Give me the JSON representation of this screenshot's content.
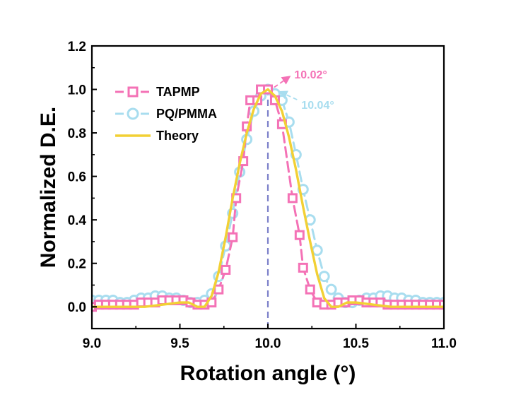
{
  "chart_data": {
    "type": "line",
    "xlabel": "Rotation angle (°)",
    "ylabel": "Normalized D.E.",
    "xlim": [
      9.0,
      11.0
    ],
    "ylim": [
      -0.1,
      1.2
    ],
    "xticks": [
      9.0,
      9.5,
      10.0,
      10.5,
      11.0
    ],
    "xtick_labels": [
      "9.0",
      "9.5",
      "10.0",
      "10.5",
      "11.0"
    ],
    "yticks": [
      0.0,
      0.2,
      0.4,
      0.6,
      0.8,
      1.0,
      1.2
    ],
    "ytick_labels": [
      "0.0",
      "0.2",
      "0.4",
      "0.6",
      "0.8",
      "1.0",
      "1.2"
    ],
    "grid": false,
    "legend_position": "top-left",
    "series": [
      {
        "name": "TAPMP",
        "color": "#f472b6",
        "marker": "square",
        "line_style": "dashed",
        "x": [
          9.0,
          9.04,
          9.08,
          9.12,
          9.16,
          9.2,
          9.24,
          9.28,
          9.32,
          9.36,
          9.4,
          9.44,
          9.48,
          9.52,
          9.56,
          9.6,
          9.64,
          9.68,
          9.72,
          9.76,
          9.8,
          9.82,
          9.86,
          9.88,
          9.9,
          9.94,
          9.96,
          10.0,
          10.04,
          10.08,
          10.14,
          10.18,
          10.2,
          10.24,
          10.28,
          10.32,
          10.36,
          10.4,
          10.44,
          10.48,
          10.52,
          10.56,
          10.6,
          10.64,
          10.68,
          10.72,
          10.76,
          10.8,
          10.84,
          10.88,
          10.92,
          10.96,
          11.0
        ],
        "y": [
          0.0,
          0.01,
          0.01,
          0.01,
          0.01,
          0.01,
          0.01,
          0.02,
          0.02,
          0.02,
          0.03,
          0.03,
          0.03,
          0.03,
          0.02,
          0.01,
          0.01,
          0.02,
          0.08,
          0.17,
          0.32,
          0.5,
          0.67,
          0.83,
          0.95,
          0.95,
          1.0,
          1.0,
          0.95,
          0.84,
          0.5,
          0.33,
          0.18,
          0.08,
          0.02,
          0.01,
          0.01,
          0.02,
          0.02,
          0.03,
          0.03,
          0.02,
          0.02,
          0.02,
          0.01,
          0.01,
          0.01,
          0.01,
          0.01,
          0.01,
          0.01,
          0.01,
          0.01
        ]
      },
      {
        "name": "PQ/PMMA",
        "color": "#a8ddef",
        "marker": "circle",
        "line_style": "dashed",
        "x": [
          9.0,
          9.04,
          9.08,
          9.12,
          9.16,
          9.2,
          9.24,
          9.28,
          9.32,
          9.36,
          9.4,
          9.44,
          9.48,
          9.52,
          9.56,
          9.6,
          9.64,
          9.68,
          9.72,
          9.76,
          9.8,
          9.84,
          9.88,
          9.92,
          9.96,
          10.0,
          10.04,
          10.08,
          10.12,
          10.16,
          10.2,
          10.24,
          10.28,
          10.32,
          10.36,
          10.4,
          10.44,
          10.48,
          10.52,
          10.56,
          10.6,
          10.64,
          10.68,
          10.72,
          10.76,
          10.8,
          10.84,
          10.88,
          10.92,
          10.96,
          11.0
        ],
        "y": [
          0.03,
          0.03,
          0.03,
          0.03,
          0.02,
          0.02,
          0.03,
          0.04,
          0.04,
          0.05,
          0.05,
          0.04,
          0.04,
          0.03,
          0.02,
          0.02,
          0.03,
          0.06,
          0.14,
          0.28,
          0.43,
          0.62,
          0.77,
          0.9,
          0.97,
          1.0,
          0.98,
          0.95,
          0.85,
          0.7,
          0.54,
          0.4,
          0.26,
          0.14,
          0.08,
          0.04,
          0.02,
          0.02,
          0.03,
          0.04,
          0.04,
          0.05,
          0.05,
          0.04,
          0.04,
          0.03,
          0.03,
          0.02,
          0.02,
          0.02,
          0.02
        ]
      },
      {
        "name": "Theory",
        "color": "#f2d034",
        "marker": "none",
        "line_style": "solid",
        "x": [
          9.0,
          9.1,
          9.2,
          9.3,
          9.4,
          9.5,
          9.55,
          9.6,
          9.64,
          9.68,
          9.72,
          9.76,
          9.8,
          9.84,
          9.88,
          9.92,
          9.96,
          10.0,
          10.04,
          10.08,
          10.12,
          10.16,
          10.2,
          10.24,
          10.28,
          10.32,
          10.36,
          10.4,
          10.45,
          10.5,
          10.6,
          10.7,
          10.8,
          10.9,
          11.0
        ],
        "y": [
          0.0,
          0.0,
          0.0,
          0.0,
          0.01,
          0.02,
          0.02,
          0.0,
          0.0,
          0.05,
          0.16,
          0.32,
          0.5,
          0.66,
          0.8,
          0.91,
          0.98,
          1.0,
          0.97,
          0.9,
          0.78,
          0.63,
          0.46,
          0.3,
          0.15,
          0.04,
          0.0,
          0.0,
          0.02,
          0.02,
          0.01,
          0.0,
          0.0,
          0.0,
          0.0
        ]
      }
    ],
    "reference_line": {
      "x": 10.0,
      "color": "#7b7fc9",
      "style": "dashed"
    },
    "annotations": [
      {
        "text": "10.02°",
        "color": "#f472b6",
        "target_x": 10.02,
        "target_y": 1.0,
        "label_x": 10.15,
        "label_y": 1.07
      },
      {
        "text": "10.04°",
        "color": "#a8ddef",
        "target_x": 10.04,
        "target_y": 1.0,
        "label_x": 10.19,
        "label_y": 0.93
      }
    ]
  }
}
